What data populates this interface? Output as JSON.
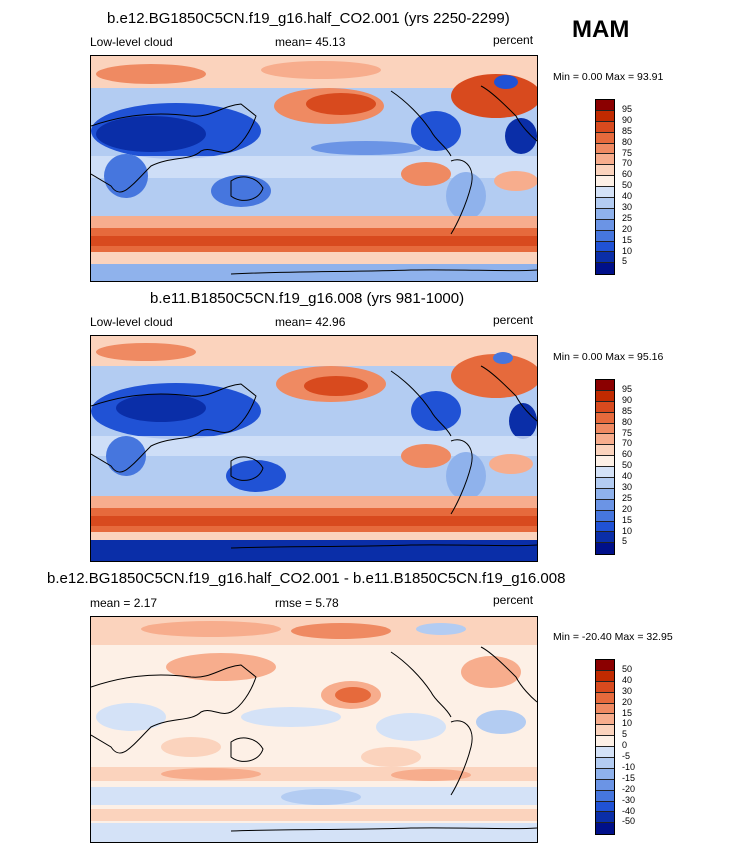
{
  "season": "MAM",
  "panels": [
    {
      "title": "b.e12.BG1850C5CN.f19_g16.half_CO2.001 (yrs 2250-2299)",
      "left_label": "Low-level cloud",
      "center_label": "mean=  45.13",
      "right_label": "percent",
      "minmax": "Min =   0.00 Max =  93.91",
      "levels": [
        "95",
        "90",
        "85",
        "80",
        "75",
        "70",
        "60",
        "50",
        "40",
        "30",
        "25",
        "20",
        "15",
        "10",
        "5"
      ]
    },
    {
      "title": "b.e11.B1850C5CN.f19_g16.008 (yrs 981-1000)",
      "left_label": "Low-level cloud",
      "center_label": "mean=  42.96",
      "right_label": "percent",
      "minmax": "Min =   0.00 Max =  95.16",
      "levels": [
        "95",
        "90",
        "85",
        "80",
        "75",
        "70",
        "60",
        "50",
        "40",
        "30",
        "25",
        "20",
        "15",
        "10",
        "5"
      ]
    },
    {
      "title": "b.e12.BG1850C5CN.f19_g16.half_CO2.001 - b.e11.B1850C5CN.f19_g16.008",
      "left_label": "mean =   2.17",
      "center_label": "rmse =   5.78",
      "right_label": "percent",
      "minmax": "Min = -20.40 Max =  32.95",
      "levels": [
        "50",
        "40",
        "30",
        "20",
        "15",
        "10",
        "5",
        "0",
        "-5",
        "-10",
        "-15",
        "-20",
        "-30",
        "-40",
        "-50"
      ]
    }
  ],
  "colors": {
    "scale": [
      "#8b0000",
      "#c12a00",
      "#d84a1e",
      "#e66a3c",
      "#ef8a62",
      "#f7ad8d",
      "#fbd3bd",
      "#fdf0e6",
      "#d4e2f7",
      "#b3ccf2",
      "#8fb2ec",
      "#6b94e5",
      "#4676de",
      "#2052d5",
      "#0a2ea8",
      "#00108a"
    ]
  }
}
